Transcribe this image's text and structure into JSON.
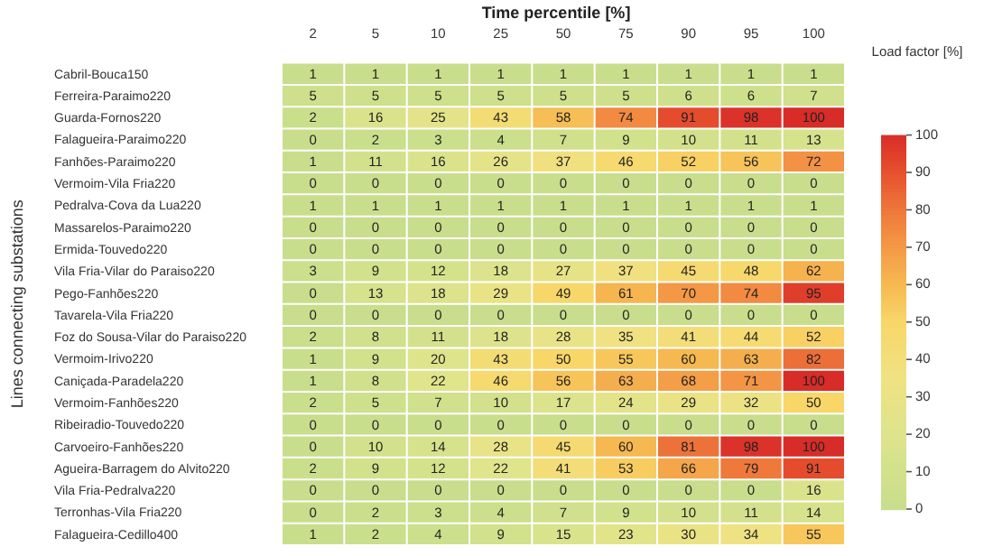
{
  "chart_data": {
    "type": "heatmap",
    "title": "Time percentile [%]",
    "ylabel": "Lines connecting substations",
    "clabel": "Load factor [%]",
    "categories": [
      "2",
      "5",
      "10",
      "25",
      "50",
      "75",
      "90",
      "95",
      "100"
    ],
    "y_categories": [
      "Cabril-Bouca150",
      "Ferreira-Paraimo220",
      "Guarda-Fornos220",
      "Falagueira-Paraimo220",
      "Fanhões-Paraimo220",
      "Vermoim-Vila Fria220",
      "Pedralva-Cova da Lua220",
      "Massarelos-Paraimo220",
      "Ermida-Touvedo220",
      "Vila Fria-Vilar do Paraiso220",
      "Pego-Fanhões220",
      "Tavarela-Vila Fria220",
      "Foz do Sousa-Vilar do Paraiso220",
      "Vermoim-Irivo220",
      "Caniçada-Paradela220",
      "Vermoim-Fanhões220",
      "Ribeiradio-Touvedo220",
      "Carvoeiro-Fanhões220",
      "Agueira-Barragem do Alvito220",
      "Vila Fria-Pedralva220",
      "Terronhas-Vila Fria220",
      "Falagueira-Cedillo400"
    ],
    "cells": [
      [
        1,
        1,
        1,
        1,
        1,
        1,
        1,
        1,
        1
      ],
      [
        5,
        5,
        5,
        5,
        5,
        5,
        6,
        6,
        7
      ],
      [
        2,
        16,
        25,
        43,
        58,
        74,
        91,
        98,
        100
      ],
      [
        0,
        2,
        3,
        4,
        7,
        9,
        10,
        11,
        13
      ],
      [
        1,
        11,
        16,
        26,
        37,
        46,
        52,
        56,
        72
      ],
      [
        0,
        0,
        0,
        0,
        0,
        0,
        0,
        0,
        0
      ],
      [
        1,
        1,
        1,
        1,
        1,
        1,
        1,
        1,
        1
      ],
      [
        0,
        0,
        0,
        0,
        0,
        0,
        0,
        0,
        0
      ],
      [
        0,
        0,
        0,
        0,
        0,
        0,
        0,
        0,
        0
      ],
      [
        3,
        9,
        12,
        18,
        27,
        37,
        45,
        48,
        62
      ],
      [
        0,
        13,
        18,
        29,
        49,
        61,
        70,
        74,
        95
      ],
      [
        0,
        0,
        0,
        0,
        0,
        0,
        0,
        0,
        0
      ],
      [
        2,
        8,
        11,
        18,
        28,
        35,
        41,
        44,
        52
      ],
      [
        1,
        9,
        20,
        43,
        50,
        55,
        60,
        63,
        82
      ],
      [
        1,
        8,
        22,
        46,
        56,
        63,
        68,
        71,
        100
      ],
      [
        2,
        5,
        7,
        10,
        17,
        24,
        29,
        32,
        50
      ],
      [
        0,
        0,
        0,
        0,
        0,
        0,
        0,
        0,
        0
      ],
      [
        0,
        10,
        14,
        28,
        45,
        60,
        81,
        98,
        100
      ],
      [
        2,
        9,
        12,
        22,
        41,
        53,
        66,
        79,
        91
      ],
      [
        0,
        0,
        0,
        0,
        0,
        0,
        0,
        0,
        16
      ],
      [
        0,
        2,
        3,
        4,
        7,
        9,
        10,
        11,
        14
      ],
      [
        1,
        2,
        4,
        9,
        15,
        23,
        30,
        34,
        55
      ]
    ],
    "clim": [
      0,
      100
    ],
    "cticks": [
      0,
      10,
      20,
      30,
      40,
      50,
      60,
      70,
      80,
      90,
      100
    ],
    "data_labels": true
  }
}
